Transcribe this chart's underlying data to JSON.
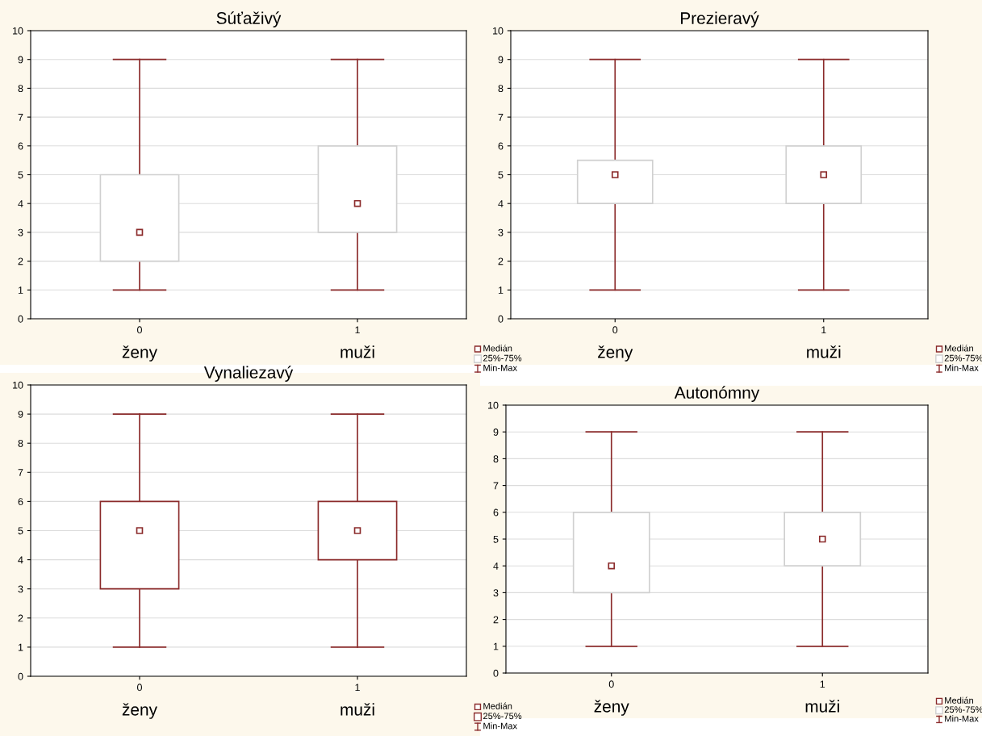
{
  "chart_data": [
    {
      "type": "box",
      "title": "Súťaživý",
      "categories": [
        "0",
        "1"
      ],
      "ylim": [
        0,
        10
      ],
      "yticks": [
        0,
        1,
        2,
        3,
        4,
        5,
        6,
        7,
        8,
        9,
        10
      ],
      "grid": "y",
      "marker": "square",
      "series": [
        {
          "color": "#8b2b2b",
          "colors": [
            "#d0d0d0",
            "#d0d0d0"
          ],
          "boxes": [
            {
              "low": 1,
              "q1": 2,
              "median": 3,
              "q3": 5,
              "high": 9
            },
            {
              "low": 1,
              "q1": 3,
              "median": 4,
              "q3": 6,
              "high": 9
            }
          ]
        }
      ],
      "annotations": [
        "Medián",
        "25%-75%",
        "Min-Max",
        "ženy",
        "muži"
      ]
    },
    {
      "type": "box",
      "title": "Prezieravý",
      "categories": [
        "0",
        "1"
      ],
      "ylim": [
        0,
        10
      ],
      "yticks": [
        0,
        1,
        2,
        3,
        4,
        5,
        6,
        7,
        8,
        9,
        10
      ],
      "grid": "y",
      "marker": "square",
      "series": [
        {
          "color": "#8b2b2b",
          "colors": [
            "#d0d0d0",
            "#d0d0d0"
          ],
          "boxes": [
            {
              "low": 1,
              "q1": 4,
              "median": 5,
              "q3": 5.5,
              "high": 9
            },
            {
              "low": 1,
              "q1": 4,
              "median": 5,
              "q3": 6,
              "high": 9
            }
          ]
        }
      ],
      "annotations": [
        "Medián",
        "25%-75%",
        "Min-Max",
        "ženy",
        "muži"
      ]
    },
    {
      "type": "box",
      "title": "Vynaliezavý",
      "categories": [
        "0",
        "1"
      ],
      "ylim": [
        0,
        10
      ],
      "yticks": [
        0,
        1,
        2,
        3,
        4,
        5,
        6,
        7,
        8,
        9,
        10
      ],
      "grid": "y",
      "marker": "square",
      "series": [
        {
          "color": "#8b2b2b",
          "colors": [
            "#8b2b2b",
            "#8b2b2b"
          ],
          "boxes": [
            {
              "low": 1,
              "q1": 3,
              "median": 5,
              "q3": 6,
              "high": 9
            },
            {
              "low": 1,
              "q1": 4,
              "median": 5,
              "q3": 6,
              "high": 9
            }
          ]
        }
      ],
      "annotations": [
        "Medián",
        "25%-75%",
        "Min-Max",
        "ženy",
        "muži"
      ]
    },
    {
      "type": "box",
      "title": "Autonómny",
      "categories": [
        "0",
        "1"
      ],
      "ylim": [
        0,
        10
      ],
      "yticks": [
        0,
        1,
        2,
        3,
        4,
        5,
        6,
        7,
        8,
        9,
        10
      ],
      "grid": "y",
      "marker": "square",
      "series": [
        {
          "color": "#8b2b2b",
          "colors": [
            "#d0d0d0",
            "#d0d0d0"
          ],
          "boxes": [
            {
              "low": 1,
              "q1": 3,
              "median": 4,
              "q3": 6,
              "high": 9
            },
            {
              "low": 1,
              "q1": 4,
              "median": 5,
              "q3": 6,
              "high": 9
            }
          ]
        }
      ],
      "annotations": [
        "Medián",
        "25%-75%",
        "Min-Max",
        "ženy",
        "muži"
      ]
    }
  ]
}
